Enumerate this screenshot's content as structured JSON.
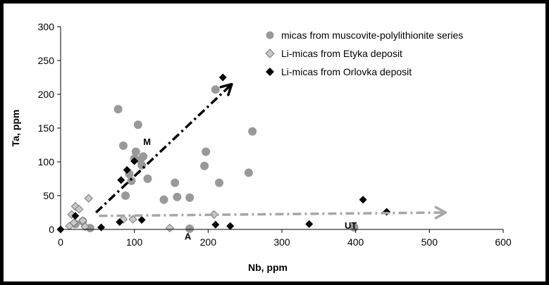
{
  "chart_data": {
    "type": "scatter",
    "xlabel": "Nb, ppm",
    "ylabel": "Ta, ppm",
    "xlim": [
      0,
      600
    ],
    "ylim": [
      0,
      300
    ],
    "xticks": [
      0,
      100,
      200,
      300,
      400,
      500,
      600
    ],
    "yticks": [
      0,
      50,
      100,
      150,
      200,
      250,
      300
    ],
    "grid": false,
    "legend_position": "top-right",
    "series": [
      {
        "name": "micas from muscovite-polylithionite series",
        "marker": "circle",
        "color": "#999999",
        "points": [
          [
            78,
            178
          ],
          [
            85,
            124
          ],
          [
            88,
            50
          ],
          [
            93,
            82
          ],
          [
            96,
            72
          ],
          [
            100,
            105
          ],
          [
            102,
            115
          ],
          [
            105,
            155
          ],
          [
            108,
            103
          ],
          [
            110,
            95
          ],
          [
            112,
            108
          ],
          [
            118,
            75
          ],
          [
            140,
            44
          ],
          [
            155,
            69
          ],
          [
            158,
            48
          ],
          [
            175,
            47
          ],
          [
            175,
            1
          ],
          [
            195,
            94
          ],
          [
            197,
            115
          ],
          [
            210,
            207
          ],
          [
            215,
            69
          ],
          [
            255,
            84
          ],
          [
            260,
            145
          ],
          [
            398,
            3
          ],
          [
            20,
            8
          ],
          [
            30,
            12
          ],
          [
            40,
            2
          ]
        ]
      },
      {
        "name": "Li-micas from Etyka deposit",
        "marker": "diamond",
        "color": "#c8c8c8",
        "points": [
          [
            12,
            5
          ],
          [
            15,
            22
          ],
          [
            18,
            10
          ],
          [
            20,
            34
          ],
          [
            25,
            30
          ],
          [
            30,
            13
          ],
          [
            33,
            4
          ],
          [
            38,
            46
          ],
          [
            85,
            15
          ],
          [
            98,
            15
          ],
          [
            148,
            2
          ],
          [
            208,
            22
          ]
        ]
      },
      {
        "name": "Li-micas from Orlovka deposit",
        "marker": "diamond",
        "color": "#000000",
        "points": [
          [
            0,
            0
          ],
          [
            20,
            20
          ],
          [
            55,
            3
          ],
          [
            80,
            11
          ],
          [
            82,
            73
          ],
          [
            90,
            88
          ],
          [
            100,
            101
          ],
          [
            110,
            14
          ],
          [
            210,
            7
          ],
          [
            220,
            225
          ],
          [
            230,
            5
          ],
          [
            337,
            8
          ],
          [
            410,
            44
          ],
          [
            442,
            26
          ]
        ]
      }
    ],
    "trends": [
      {
        "label": "M",
        "color": "#000000",
        "from": [
          48,
          25
        ],
        "to": [
          232,
          215
        ]
      },
      {
        "label": "UT",
        "color": "#a6a6a6",
        "from": [
          52,
          20
        ],
        "to": [
          522,
          25
        ]
      }
    ],
    "annotations": [
      {
        "text": "M",
        "x": 112,
        "y": 125
      },
      {
        "text": "UT",
        "x": 385,
        "y": 1
      },
      {
        "text": "A",
        "x": 168,
        "y": -15
      }
    ]
  }
}
